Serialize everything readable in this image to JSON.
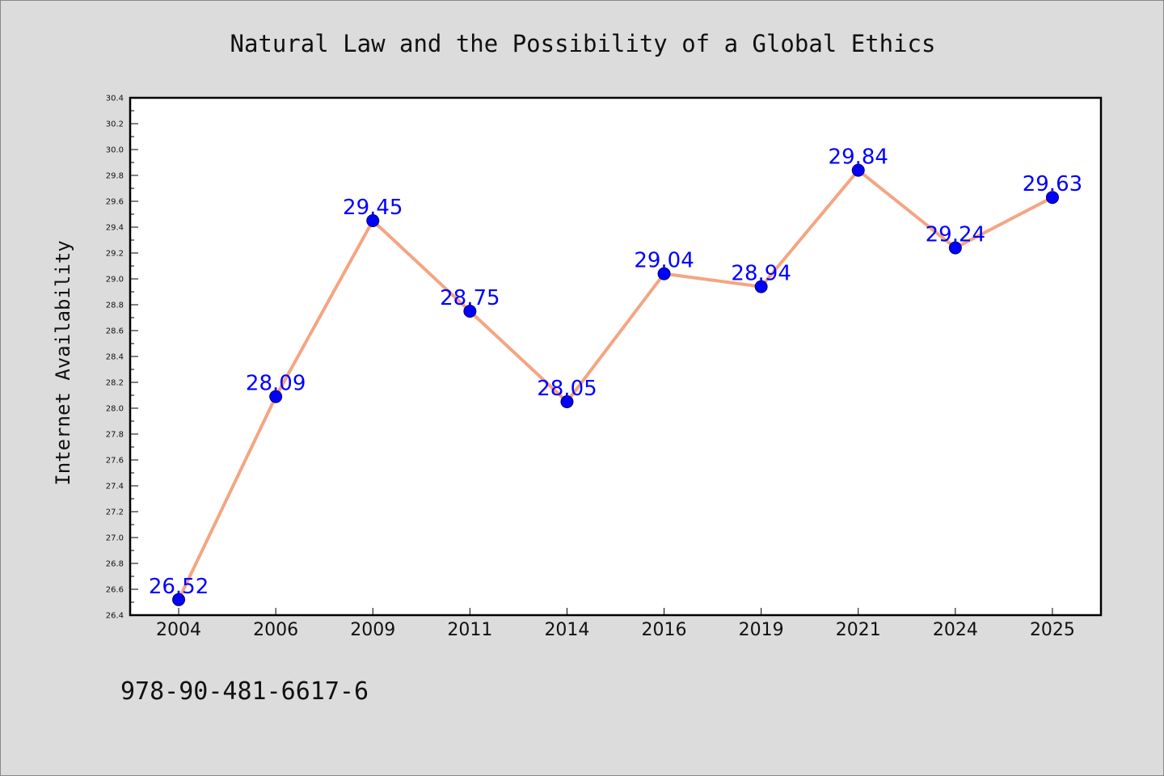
{
  "chart_data": {
    "type": "line",
    "title": "Natural Law and the Possibility of a Global Ethics",
    "xlabel": "",
    "ylabel": "Internet Availability",
    "categories": [
      "2004",
      "2006",
      "2009",
      "2011",
      "2014",
      "2016",
      "2019",
      "2021",
      "2024",
      "2025"
    ],
    "series": [
      {
        "values": [
          26.52,
          28.09,
          29.45,
          28.75,
          28.05,
          29.04,
          28.94,
          29.84,
          29.24,
          29.63
        ],
        "labels": [
          "26.52",
          "28.09",
          "29.45",
          "28.75",
          "28.05",
          "29.04",
          "28.94",
          "29.84",
          "29.24",
          "29.63"
        ]
      }
    ],
    "ylim": [
      26.4,
      30.4
    ],
    "yticks": [
      "26.4",
      "26.6",
      "26.8",
      "27.0",
      "27.2",
      "27.4",
      "27.6",
      "27.8",
      "28.0",
      "28.2",
      "28.4",
      "28.6",
      "28.8",
      "29.0",
      "29.2",
      "29.4",
      "29.6",
      "29.8",
      "30.0",
      "30.2",
      "30.4"
    ],
    "grid": false,
    "line_color": "#f4a582",
    "marker_color": "#0000ff",
    "label_color": "#0000ff"
  },
  "footer_text": "978-90-481-6617-6"
}
